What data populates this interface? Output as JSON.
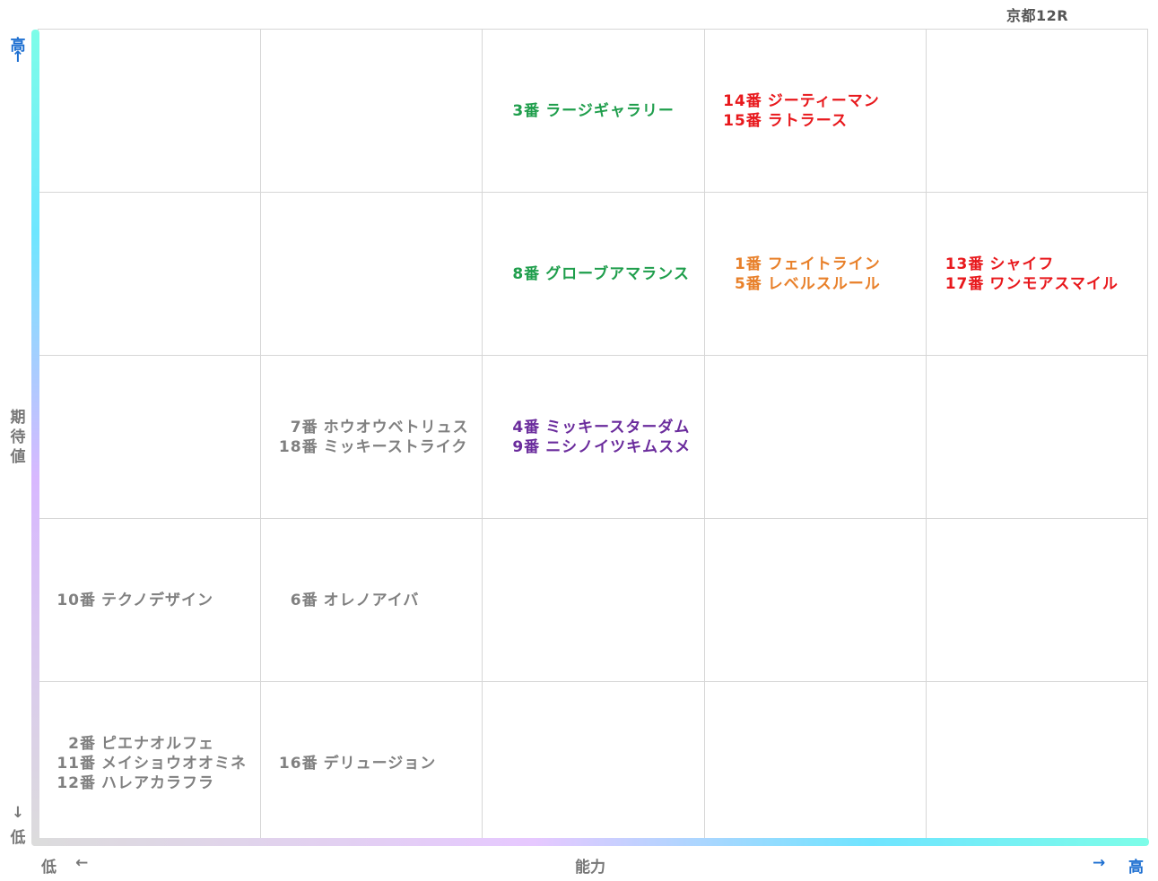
{
  "race_label": "京都12R",
  "axes": {
    "y": {
      "label": "期待値",
      "high": "高",
      "low": "低",
      "arrow_up": "↑",
      "arrow_down": "↓"
    },
    "x": {
      "label": "能力",
      "high": "高",
      "low": "低",
      "arrow_right": "→",
      "arrow_left": "←"
    }
  },
  "colors": {
    "green": "#1f9e4c",
    "red": "#e8181c",
    "orange": "#e8802a",
    "purple": "#6a2b9c",
    "gray": "#808080",
    "axis_blue": "#1d6fd1"
  },
  "chart_data": {
    "type": "table",
    "title": "京都12R",
    "xlabel": "能力",
    "ylabel": "期待値",
    "columns": 5,
    "rows": 5,
    "cells": [
      {
        "row": 0,
        "col": 2,
        "color": "green",
        "horses": [
          {
            "num": "3番",
            "name": "ラージギャラリー"
          }
        ]
      },
      {
        "row": 0,
        "col": 3,
        "color": "red",
        "horses": [
          {
            "num": "14番",
            "name": "ジーティーマン"
          },
          {
            "num": "15番",
            "name": "ラトラース"
          }
        ]
      },
      {
        "row": 1,
        "col": 2,
        "color": "green",
        "horses": [
          {
            "num": "8番",
            "name": "グローブアマランス"
          }
        ]
      },
      {
        "row": 1,
        "col": 3,
        "color": "orange",
        "horses": [
          {
            "num": "1番",
            "name": "フェイトライン"
          },
          {
            "num": "5番",
            "name": "レベルスルール"
          }
        ]
      },
      {
        "row": 1,
        "col": 4,
        "color": "red",
        "horses": [
          {
            "num": "13番",
            "name": "シャイフ"
          },
          {
            "num": "17番",
            "name": "ワンモアスマイル"
          }
        ]
      },
      {
        "row": 2,
        "col": 1,
        "color": "gray",
        "horses": [
          {
            "num": "7番",
            "name": "ホウオウベトリュス"
          },
          {
            "num": "18番",
            "name": "ミッキーストライク"
          }
        ]
      },
      {
        "row": 2,
        "col": 2,
        "color": "purple",
        "horses": [
          {
            "num": "4番",
            "name": "ミッキースターダム"
          },
          {
            "num": "9番",
            "name": "ニシノイツキムスメ"
          }
        ]
      },
      {
        "row": 3,
        "col": 0,
        "color": "gray",
        "horses": [
          {
            "num": "10番",
            "name": "テクノデザイン"
          }
        ]
      },
      {
        "row": 3,
        "col": 1,
        "color": "gray",
        "horses": [
          {
            "num": "6番",
            "name": "オレノアイバ"
          }
        ]
      },
      {
        "row": 4,
        "col": 0,
        "color": "gray",
        "horses": [
          {
            "num": "2番",
            "name": "ピエナオルフェ"
          },
          {
            "num": "11番",
            "name": "メイショウオオミネ"
          },
          {
            "num": "12番",
            "name": "ハレアカラフラ"
          }
        ]
      },
      {
        "row": 4,
        "col": 1,
        "color": "gray",
        "horses": [
          {
            "num": "16番",
            "name": "デリュージョン"
          }
        ]
      }
    ]
  }
}
